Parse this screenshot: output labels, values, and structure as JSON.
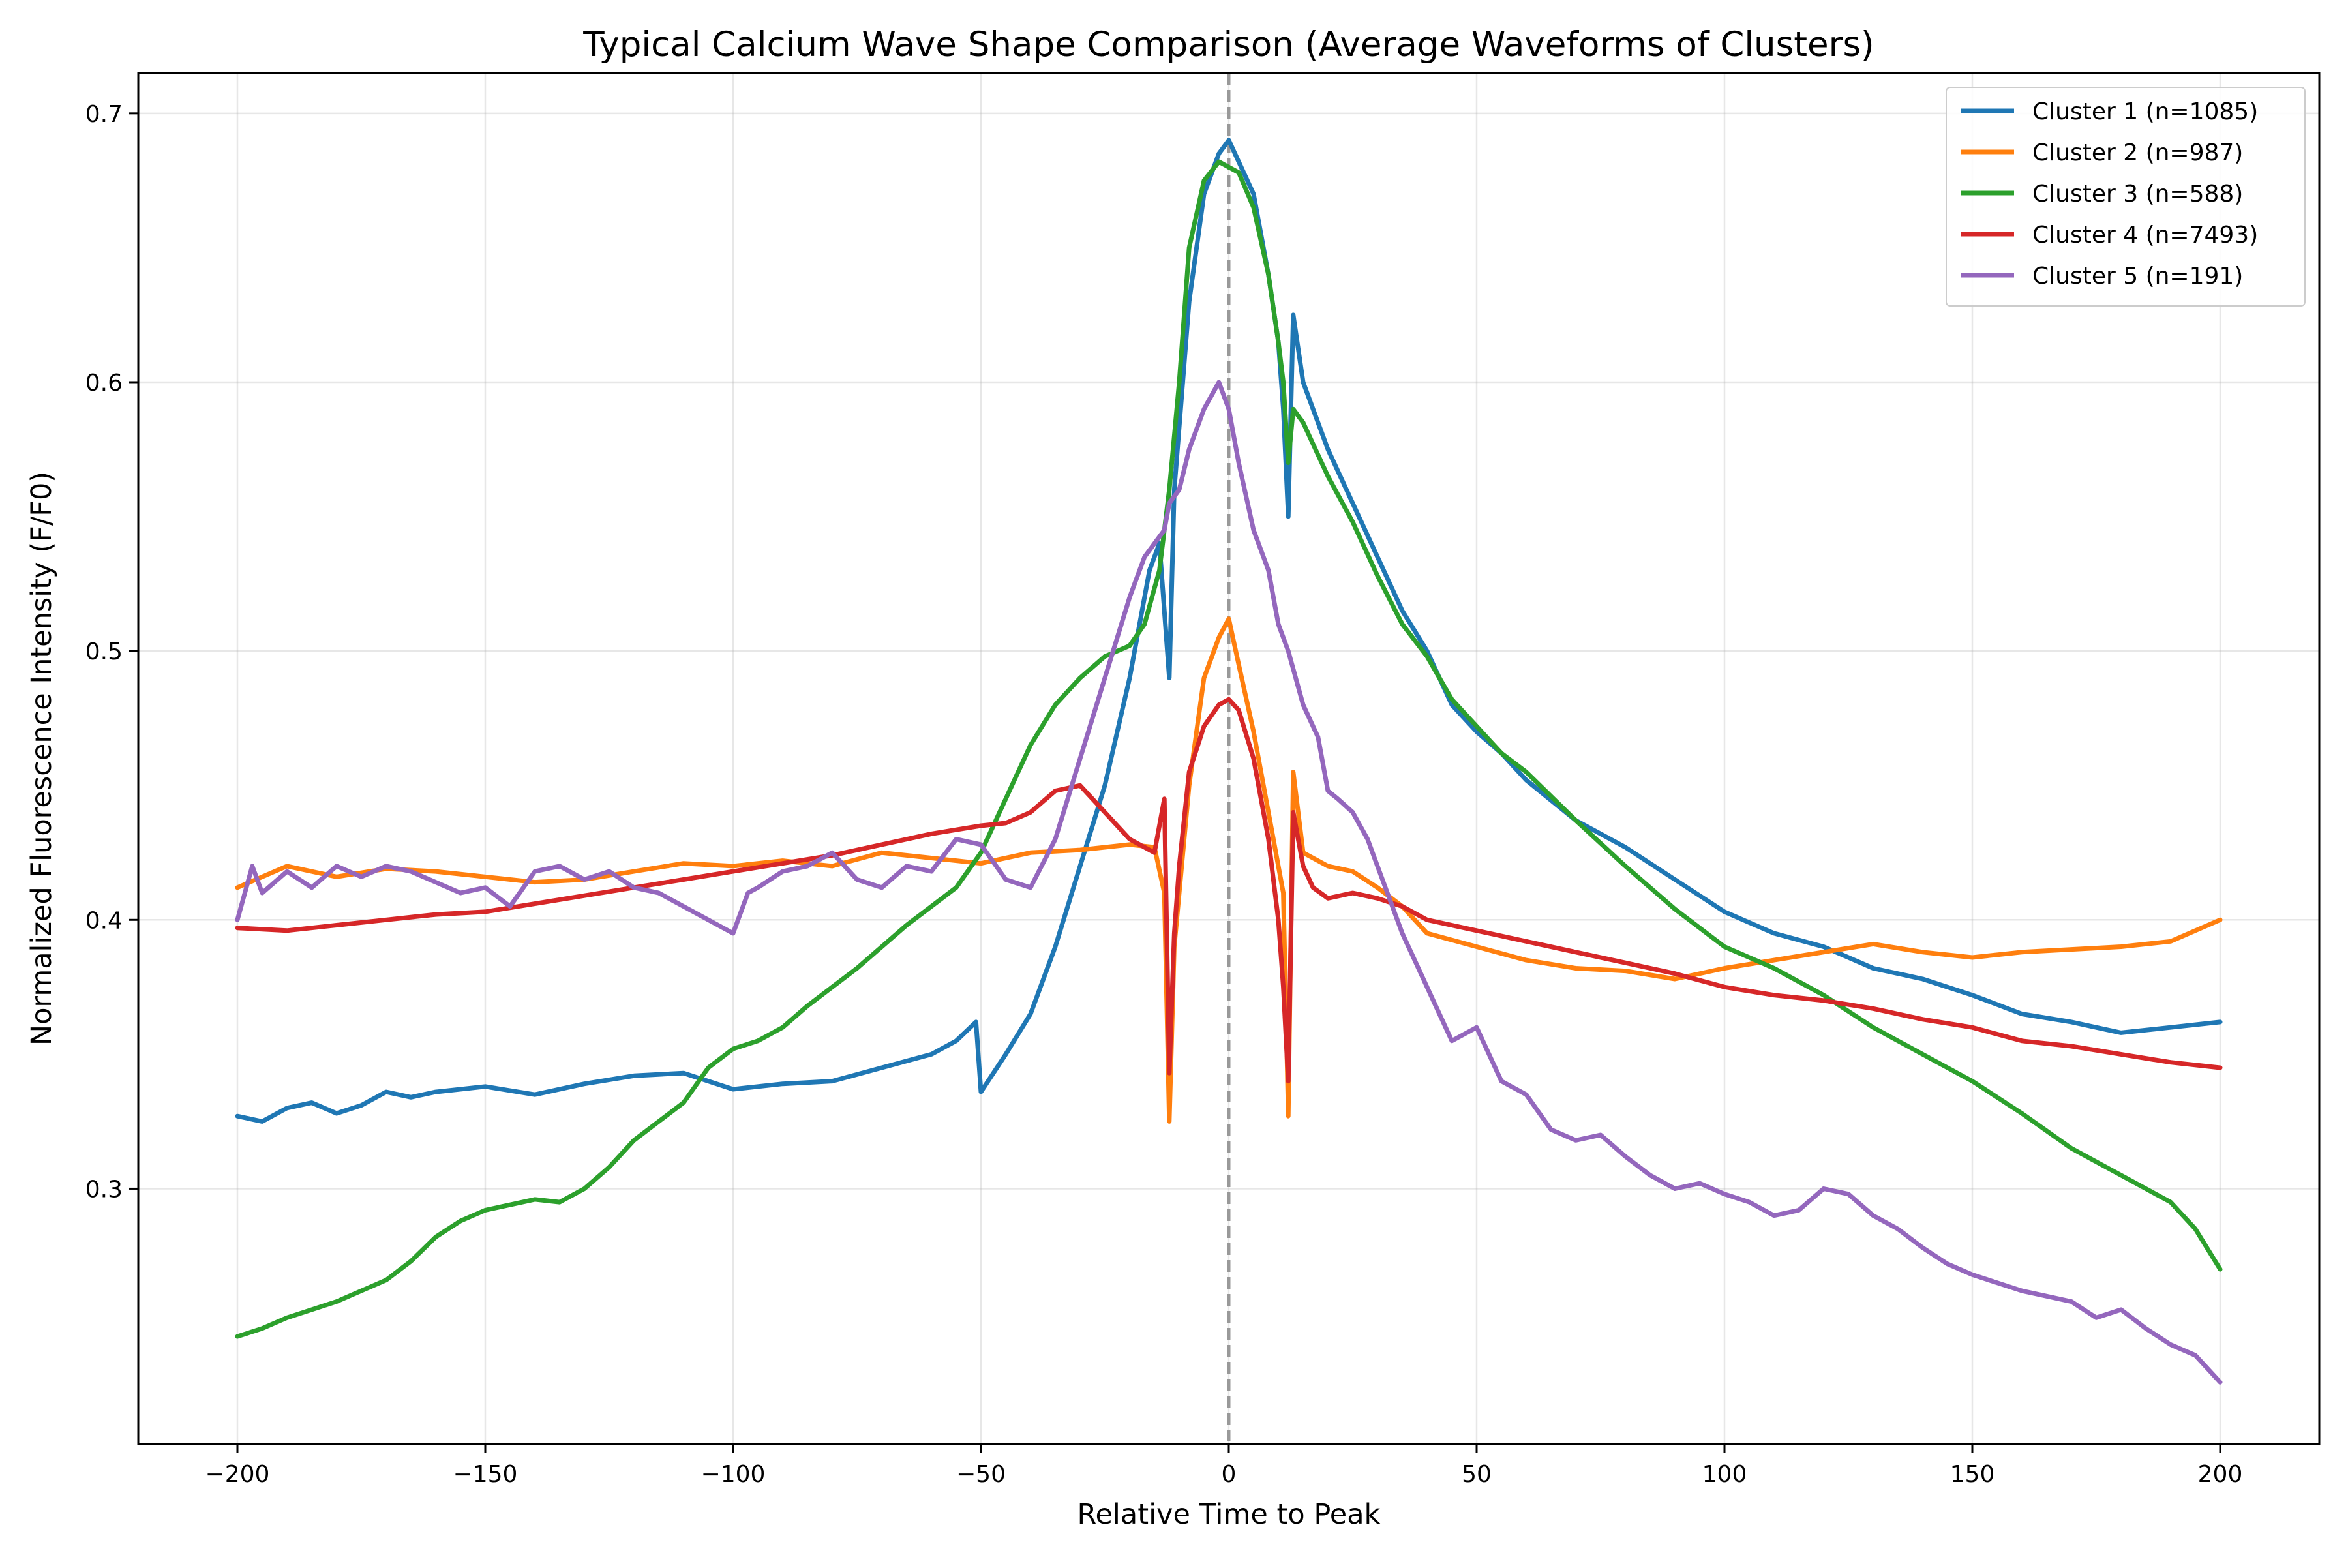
{
  "chart_data": {
    "type": "line",
    "title": "Typical Calcium Wave Shape Comparison (Average Waveforms of Clusters)",
    "xlabel": "Relative Time to Peak",
    "ylabel": "Normalized Fluorescence Intensity (F/F0)",
    "xlim": [
      -220,
      220
    ],
    "ylim": [
      0.205,
      0.715
    ],
    "xticks": [
      -200,
      -150,
      -100,
      -50,
      0,
      50,
      100,
      150,
      200
    ],
    "xtick_labels": [
      "−200",
      "−150",
      "−100",
      "−50",
      "0",
      "50",
      "100",
      "150",
      "200"
    ],
    "yticks": [
      0.3,
      0.4,
      0.5,
      0.6,
      0.7
    ],
    "ytick_labels": [
      "0.3",
      "0.4",
      "0.5",
      "0.6",
      "0.7"
    ],
    "grid": true,
    "legend_position": "top-right",
    "reference_line": {
      "x": 0,
      "style": "dashed",
      "color": "#999999"
    },
    "series": [
      {
        "name": "Cluster 1 (n=1085)",
        "color": "#1f77b4",
        "x": [
          -200,
          -195,
          -190,
          -185,
          -180,
          -175,
          -170,
          -165,
          -160,
          -150,
          -140,
          -130,
          -120,
          -110,
          -100,
          -90,
          -80,
          -70,
          -60,
          -55,
          -51,
          -50,
          -45,
          -40,
          -35,
          -30,
          -25,
          -20,
          -16,
          -14,
          -12,
          -11,
          -8,
          -5,
          -2,
          0,
          2,
          5,
          8,
          10,
          11,
          12,
          13,
          15,
          20,
          25,
          30,
          35,
          40,
          45,
          50,
          55,
          60,
          70,
          80,
          90,
          100,
          110,
          120,
          130,
          140,
          150,
          160,
          170,
          180,
          190,
          200
        ],
        "values": [
          0.327,
          0.325,
          0.33,
          0.332,
          0.328,
          0.331,
          0.336,
          0.334,
          0.336,
          0.338,
          0.335,
          0.339,
          0.342,
          0.343,
          0.337,
          0.339,
          0.34,
          0.345,
          0.35,
          0.355,
          0.362,
          0.336,
          0.35,
          0.365,
          0.39,
          0.42,
          0.45,
          0.49,
          0.53,
          0.54,
          0.49,
          0.56,
          0.63,
          0.67,
          0.685,
          0.69,
          0.682,
          0.67,
          0.64,
          0.615,
          0.59,
          0.55,
          0.625,
          0.6,
          0.575,
          0.555,
          0.535,
          0.515,
          0.5,
          0.48,
          0.47,
          0.462,
          0.452,
          0.437,
          0.427,
          0.415,
          0.403,
          0.395,
          0.39,
          0.382,
          0.378,
          0.372,
          0.365,
          0.362,
          0.358,
          0.36,
          0.362
        ]
      },
      {
        "name": "Cluster 2 (n=987)",
        "color": "#ff7f0e",
        "x": [
          -200,
          -190,
          -180,
          -170,
          -160,
          -150,
          -140,
          -130,
          -120,
          -110,
          -100,
          -90,
          -80,
          -70,
          -60,
          -50,
          -40,
          -30,
          -20,
          -15,
          -13,
          -12,
          -11,
          -8,
          -5,
          -2,
          0,
          2,
          5,
          8,
          11,
          12,
          13,
          15,
          20,
          25,
          30,
          35,
          40,
          50,
          60,
          70,
          80,
          90,
          100,
          110,
          120,
          130,
          140,
          150,
          160,
          170,
          180,
          190,
          200
        ],
        "values": [
          0.412,
          0.42,
          0.416,
          0.419,
          0.418,
          0.416,
          0.414,
          0.415,
          0.418,
          0.421,
          0.42,
          0.422,
          0.42,
          0.425,
          0.423,
          0.421,
          0.425,
          0.426,
          0.428,
          0.427,
          0.41,
          0.325,
          0.39,
          0.45,
          0.49,
          0.505,
          0.512,
          0.495,
          0.47,
          0.44,
          0.41,
          0.327,
          0.455,
          0.425,
          0.42,
          0.418,
          0.412,
          0.405,
          0.395,
          0.39,
          0.385,
          0.382,
          0.381,
          0.378,
          0.382,
          0.385,
          0.388,
          0.391,
          0.388,
          0.386,
          0.388,
          0.389,
          0.39,
          0.392,
          0.4
        ]
      },
      {
        "name": "Cluster 3 (n=588)",
        "color": "#2ca02c",
        "x": [
          -200,
          -195,
          -190,
          -185,
          -180,
          -175,
          -170,
          -165,
          -160,
          -155,
          -150,
          -145,
          -140,
          -135,
          -130,
          -125,
          -120,
          -115,
          -110,
          -105,
          -100,
          -95,
          -90,
          -85,
          -80,
          -75,
          -70,
          -65,
          -60,
          -55,
          -50,
          -45,
          -40,
          -35,
          -30,
          -25,
          -20,
          -17,
          -14,
          -12,
          -10,
          -8,
          -5,
          -2,
          0,
          2,
          5,
          8,
          10,
          11,
          12,
          13,
          15,
          20,
          25,
          30,
          35,
          40,
          45,
          50,
          55,
          60,
          70,
          80,
          90,
          100,
          110,
          120,
          130,
          140,
          150,
          160,
          170,
          180,
          190,
          195,
          200
        ],
        "values": [
          0.245,
          0.248,
          0.252,
          0.255,
          0.258,
          0.262,
          0.266,
          0.273,
          0.282,
          0.288,
          0.292,
          0.294,
          0.296,
          0.295,
          0.3,
          0.308,
          0.318,
          0.325,
          0.332,
          0.345,
          0.352,
          0.355,
          0.36,
          0.368,
          0.375,
          0.382,
          0.39,
          0.398,
          0.405,
          0.412,
          0.425,
          0.445,
          0.465,
          0.48,
          0.49,
          0.498,
          0.502,
          0.51,
          0.53,
          0.56,
          0.6,
          0.65,
          0.675,
          0.682,
          0.68,
          0.678,
          0.665,
          0.64,
          0.615,
          0.6,
          0.57,
          0.59,
          0.585,
          0.565,
          0.548,
          0.528,
          0.51,
          0.498,
          0.482,
          0.472,
          0.462,
          0.455,
          0.437,
          0.42,
          0.404,
          0.39,
          0.382,
          0.372,
          0.36,
          0.35,
          0.34,
          0.328,
          0.315,
          0.305,
          0.295,
          0.285,
          0.27
        ]
      },
      {
        "name": "Cluster 4 (n=7493)",
        "color": "#d62728",
        "x": [
          -200,
          -190,
          -180,
          -170,
          -160,
          -150,
          -140,
          -130,
          -120,
          -110,
          -100,
          -90,
          -80,
          -70,
          -60,
          -50,
          -45,
          -40,
          -35,
          -30,
          -25,
          -20,
          -15,
          -13,
          -12,
          -11,
          -10,
          -8,
          -5,
          -2,
          0,
          2,
          5,
          8,
          10,
          11,
          12,
          13,
          15,
          17,
          20,
          25,
          30,
          35,
          40,
          50,
          60,
          70,
          80,
          90,
          100,
          110,
          120,
          130,
          140,
          150,
          160,
          170,
          180,
          190,
          200
        ],
        "values": [
          0.397,
          0.396,
          0.398,
          0.4,
          0.402,
          0.403,
          0.406,
          0.409,
          0.412,
          0.415,
          0.418,
          0.421,
          0.424,
          0.428,
          0.432,
          0.435,
          0.436,
          0.44,
          0.448,
          0.45,
          0.44,
          0.43,
          0.425,
          0.445,
          0.343,
          0.395,
          0.42,
          0.455,
          0.472,
          0.48,
          0.482,
          0.478,
          0.46,
          0.43,
          0.4,
          0.375,
          0.34,
          0.44,
          0.42,
          0.412,
          0.408,
          0.41,
          0.408,
          0.405,
          0.4,
          0.396,
          0.392,
          0.388,
          0.384,
          0.38,
          0.375,
          0.372,
          0.37,
          0.367,
          0.363,
          0.36,
          0.355,
          0.353,
          0.35,
          0.347,
          0.345
        ]
      },
      {
        "name": "Cluster 5 (n=191)",
        "color": "#9467bd",
        "x": [
          -200,
          -197,
          -195,
          -190,
          -185,
          -180,
          -175,
          -170,
          -165,
          -160,
          -155,
          -150,
          -145,
          -140,
          -135,
          -130,
          -125,
          -120,
          -115,
          -110,
          -105,
          -100,
          -97,
          -95,
          -90,
          -85,
          -80,
          -75,
          -70,
          -65,
          -60,
          -55,
          -50,
          -45,
          -40,
          -35,
          -30,
          -25,
          -20,
          -17,
          -15,
          -13,
          -12,
          -10,
          -8,
          -5,
          -2,
          0,
          2,
          5,
          8,
          10,
          12,
          15,
          18,
          20,
          22,
          25,
          28,
          30,
          33,
          35,
          40,
          45,
          50,
          55,
          60,
          65,
          70,
          75,
          80,
          85,
          90,
          95,
          100,
          105,
          110,
          115,
          120,
          125,
          130,
          135,
          140,
          145,
          150,
          155,
          160,
          165,
          170,
          175,
          180,
          185,
          190,
          195,
          200
        ],
        "values": [
          0.4,
          0.42,
          0.41,
          0.418,
          0.412,
          0.42,
          0.416,
          0.42,
          0.418,
          0.414,
          0.41,
          0.412,
          0.405,
          0.418,
          0.42,
          0.415,
          0.418,
          0.412,
          0.41,
          0.405,
          0.4,
          0.395,
          0.41,
          0.412,
          0.418,
          0.42,
          0.425,
          0.415,
          0.412,
          0.42,
          0.418,
          0.43,
          0.428,
          0.415,
          0.412,
          0.43,
          0.46,
          0.49,
          0.52,
          0.535,
          0.54,
          0.545,
          0.555,
          0.56,
          0.575,
          0.59,
          0.6,
          0.59,
          0.57,
          0.545,
          0.53,
          0.51,
          0.5,
          0.48,
          0.468,
          0.448,
          0.445,
          0.44,
          0.43,
          0.42,
          0.405,
          0.395,
          0.375,
          0.355,
          0.36,
          0.34,
          0.335,
          0.322,
          0.318,
          0.32,
          0.312,
          0.305,
          0.3,
          0.302,
          0.298,
          0.295,
          0.29,
          0.292,
          0.3,
          0.298,
          0.29,
          0.285,
          0.278,
          0.272,
          0.268,
          0.265,
          0.262,
          0.26,
          0.258,
          0.252,
          0.255,
          0.248,
          0.242,
          0.238,
          0.228
        ]
      }
    ]
  }
}
